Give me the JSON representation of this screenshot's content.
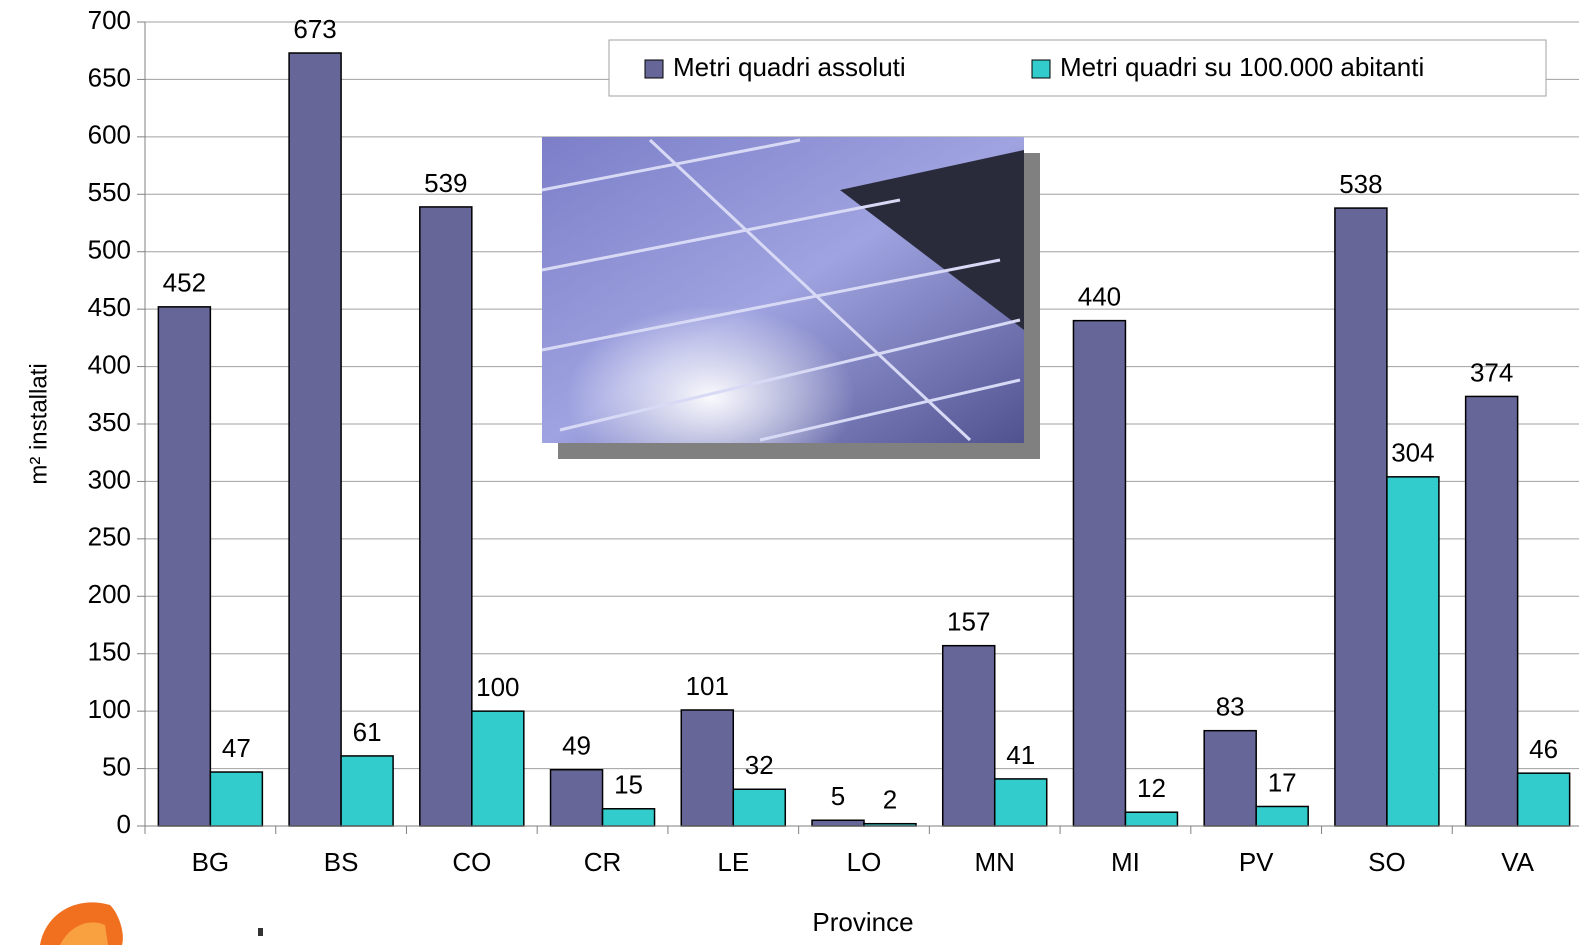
{
  "chart_data": {
    "type": "bar",
    "x_label": "Province",
    "y_label": "m² installati",
    "categories": [
      "BG",
      "BS",
      "CO",
      "CR",
      "LE",
      "LO",
      "MN",
      "MI",
      "PV",
      "SO",
      "VA"
    ],
    "series": [
      {
        "name": "Metri quadri assoluti",
        "color": "#666699",
        "values": [
          452,
          673,
          539,
          49,
          101,
          5,
          157,
          440,
          83,
          538,
          374
        ]
      },
      {
        "name": "Metri quadri su 100.000 abitanti",
        "color": "#33cccc",
        "values": [
          47,
          61,
          100,
          15,
          32,
          2,
          41,
          12,
          17,
          304,
          46
        ]
      }
    ],
    "ylim": [
      0,
      700
    ],
    "yticks": [
      0,
      50,
      100,
      150,
      200,
      250,
      300,
      350,
      400,
      450,
      500,
      550,
      600,
      650,
      700
    ],
    "grid": true,
    "legend": "top-right"
  }
}
